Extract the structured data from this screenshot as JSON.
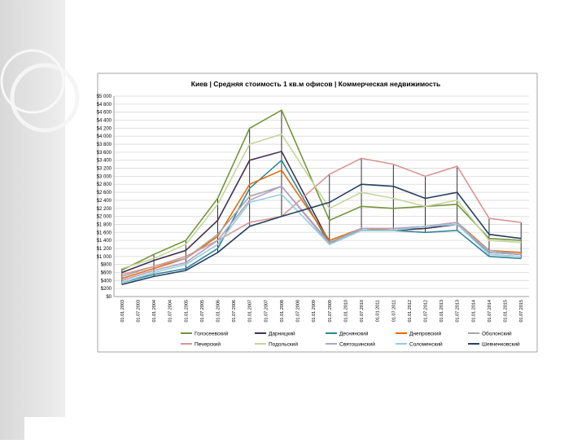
{
  "chart_data": {
    "type": "line",
    "title": "Киев | Средняя стоимость 1 кв.м офисов | Коммерческая недвижимость",
    "categories": [
      "01.01.2003",
      "01.07.2003",
      "01.01.2004",
      "01.07.2004",
      "01.01.2005",
      "01.07.2005",
      "01.01.2006",
      "01.07.2006",
      "01.01.2007",
      "01.07.2007",
      "01.01.2008",
      "01.07.2008",
      "01.01.2009",
      "01.07.2009",
      "01.01.2010",
      "01.07.2010",
      "01.01.2011",
      "01.07.2011",
      "01.01.2012",
      "01.07.2012",
      "01.01.2013",
      "01.07.2013",
      "01.01.2014",
      "01.07.2014",
      "01.01.2015",
      "01.07.2015"
    ],
    "x": [
      "01.01.2003",
      "01.01.2004",
      "01.01.2005",
      "01.01.2006",
      "01.01.2007",
      "01.01.2008",
      "01.07.2009",
      "01.07.2010",
      "01.07.2011",
      "01.07.2012",
      "01.07.2013",
      "01.07.2014",
      "01.07.2015"
    ],
    "ylim": [
      0,
      5000
    ],
    "yticks": [
      {
        "value": 0,
        "label": "$0"
      },
      {
        "value": 200,
        "label": "$200"
      },
      {
        "value": 400,
        "label": "$400"
      },
      {
        "value": 600,
        "label": "$600"
      },
      {
        "value": 800,
        "label": "$800"
      },
      {
        "value": 1000,
        "label": "$1 000"
      },
      {
        "value": 1200,
        "label": "$1 200"
      },
      {
        "value": 1400,
        "label": "$1 400"
      },
      {
        "value": 1600,
        "label": "$1 600"
      },
      {
        "value": 1800,
        "label": "$1 800"
      },
      {
        "value": 2000,
        "label": "$2 000"
      },
      {
        "value": 2200,
        "label": "$2 200"
      },
      {
        "value": 2400,
        "label": "$2 400"
      },
      {
        "value": 2600,
        "label": "$2 600"
      },
      {
        "value": 2800,
        "label": "$2 800"
      },
      {
        "value": 3000,
        "label": "$3 000"
      },
      {
        "value": 3200,
        "label": "$3 200"
      },
      {
        "value": 3400,
        "label": "$3 400"
      },
      {
        "value": 3600,
        "label": "$3 600"
      },
      {
        "value": 3800,
        "label": "$3 800"
      },
      {
        "value": 4000,
        "label": "$4 000"
      },
      {
        "value": 4200,
        "label": "$4 200"
      },
      {
        "value": 4400,
        "label": "$4 400"
      },
      {
        "value": 4600,
        "label": "$4 600"
      },
      {
        "value": 4800,
        "label": "$4 800"
      },
      {
        "value": 5000,
        "label": "$5 000"
      }
    ],
    "grid": true,
    "legend": "bottom",
    "series": [
      {
        "name": "Голосеевский",
        "color": "#77933c",
        "values": [
          660,
          1050,
          1400,
          2450,
          4200,
          4650,
          1900,
          2250,
          2200,
          2250,
          2300,
          1450,
          1400
        ]
      },
      {
        "name": "Дарницкий",
        "color": "#403151",
        "values": [
          600,
          900,
          1150,
          1900,
          3400,
          3620,
          1350,
          1650,
          1650,
          1700,
          1800,
          1100,
          1050
        ]
      },
      {
        "name": "Деснянский",
        "color": "#31859c",
        "values": [
          350,
          550,
          700,
          1200,
          2700,
          3400,
          1300,
          1650,
          1650,
          1600,
          1650,
          1000,
          950
        ]
      },
      {
        "name": "Днепровский",
        "color": "#e46c0a",
        "values": [
          450,
          700,
          950,
          1500,
          2800,
          3150,
          1400,
          1700,
          1650,
          1750,
          1850,
          1150,
          1100
        ]
      },
      {
        "name": "Оболонский",
        "color": "#a6a6a6",
        "values": [
          500,
          750,
          950,
          1550,
          2500,
          2750,
          1350,
          1700,
          1700,
          1750,
          1800,
          1150,
          1050
        ]
      },
      {
        "name": "Печерский",
        "color": "#d99694",
        "values": [
          550,
          750,
          1000,
          1400,
          1850,
          2000,
          3050,
          3450,
          3300,
          3000,
          3250,
          1950,
          1850
        ]
      },
      {
        "name": "Подольский",
        "color": "#c3d69b",
        "values": [
          700,
          950,
          1300,
          2300,
          3800,
          4050,
          2200,
          2600,
          2450,
          2250,
          2400,
          1400,
          1350
        ]
      },
      {
        "name": "Святошинский",
        "color": "#b3a2c7",
        "values": [
          400,
          650,
          850,
          1400,
          2400,
          2750,
          1300,
          1700,
          1700,
          1750,
          1850,
          1100,
          1050
        ]
      },
      {
        "name": "Соломенский",
        "color": "#93cddd",
        "values": [
          350,
          600,
          800,
          1300,
          2350,
          2550,
          1300,
          1650,
          1650,
          1750,
          1800,
          1050,
          1000
        ]
      },
      {
        "name": "Шевченковский",
        "color": "#254061",
        "values": [
          300,
          500,
          650,
          1100,
          1750,
          2000,
          2350,
          2800,
          2750,
          2450,
          2600,
          1550,
          1450
        ]
      }
    ]
  }
}
